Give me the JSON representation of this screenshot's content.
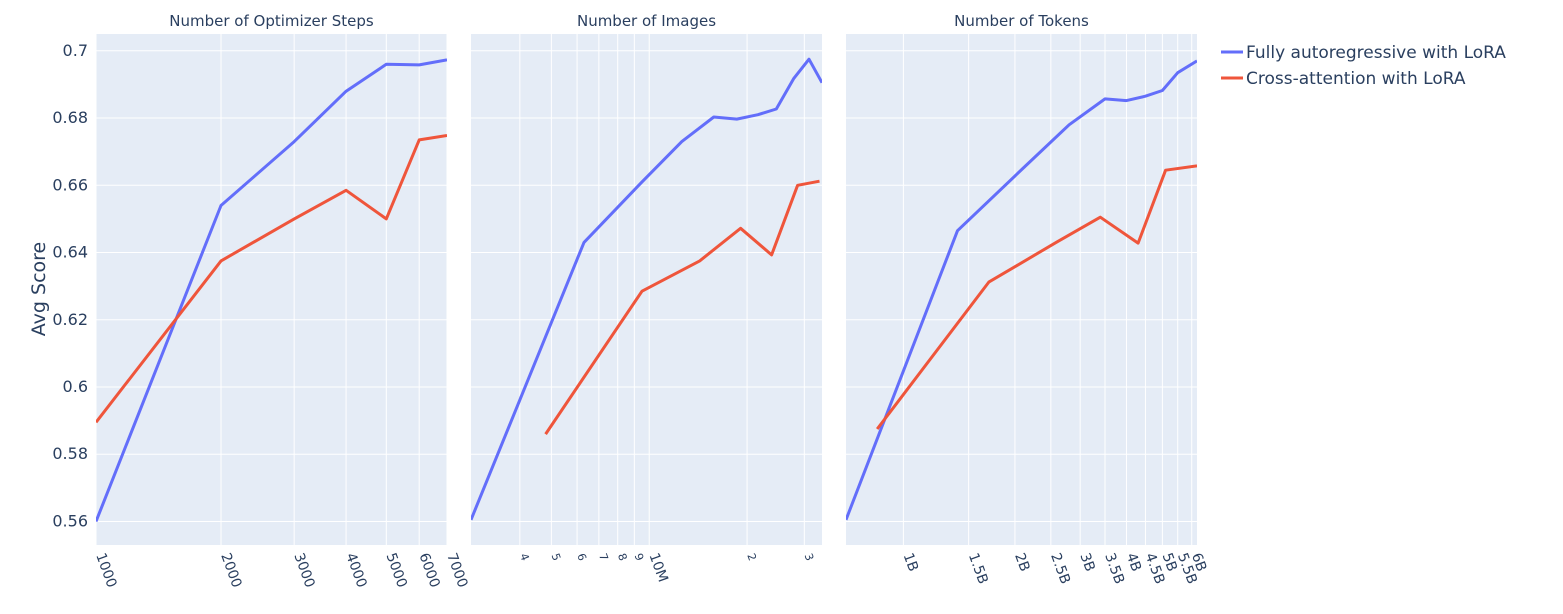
{
  "chart_data": {
    "type": "line",
    "ylabel": "Avg Score",
    "ylim": [
      0.553,
      0.705
    ],
    "yticks": [
      "0.56",
      "0.58",
      "0.6",
      "0.62",
      "0.64",
      "0.66",
      "0.68",
      "0.7"
    ],
    "legend": {
      "placement": "top-right",
      "entries": [
        "Fully autoregressive with LoRA",
        "Cross-attention with LoRA"
      ]
    },
    "colors": {
      "series1": "#636efa",
      "series2": "#ef553b",
      "plot_bg": "#e5ecf6",
      "grid": "#ffffff",
      "text": "#2a3f5f"
    },
    "panels": [
      {
        "title": "Number of Optimizer Steps",
        "xscale": "log",
        "xlim": [
          1000,
          7000
        ],
        "xticks": [
          {
            "value": 1000,
            "label": "1000"
          },
          {
            "value": 2000,
            "label": "2000"
          },
          {
            "value": 3000,
            "label": "3000"
          },
          {
            "value": 4000,
            "label": "4000"
          },
          {
            "value": 5000,
            "label": "5000"
          },
          {
            "value": 6000,
            "label": "6000"
          },
          {
            "value": 7000,
            "label": "7000"
          }
        ],
        "series": [
          {
            "name": "Fully autoregressive with LoRA",
            "x": [
              1000,
              2000,
              3000,
              4000,
              5000,
              6000,
              7000
            ],
            "y": [
              0.56,
              0.654,
              0.673,
              0.688,
              0.696,
              0.6958,
              0.6973
            ]
          },
          {
            "name": "Cross-attention with LoRA",
            "x": [
              1000,
              2000,
              3000,
              4000,
              5000,
              6000,
              7000
            ],
            "y": [
              0.5895,
              0.6375,
              0.65,
              0.6585,
              0.65,
              0.6735,
              0.6748
            ]
          }
        ]
      },
      {
        "title": "Number of Images",
        "xscale": "log",
        "xlim": [
          2830000,
          34000000
        ],
        "xticks": [
          {
            "value": 4000000,
            "label": "4",
            "minor": true
          },
          {
            "value": 5000000,
            "label": "5",
            "minor": true
          },
          {
            "value": 6000000,
            "label": "6",
            "minor": true
          },
          {
            "value": 7000000,
            "label": "7",
            "minor": true
          },
          {
            "value": 8000000,
            "label": "8",
            "minor": true
          },
          {
            "value": 9000000,
            "label": "9",
            "minor": true
          },
          {
            "value": 10000000,
            "label": "10M"
          },
          {
            "value": 20000000,
            "label": "2",
            "minor": true
          },
          {
            "value": 30000000,
            "label": "3",
            "minor": true
          }
        ],
        "series": [
          {
            "name": "Fully autoregressive with LoRA",
            "x": [
              2830000,
              6300000,
              9500000,
              12600000,
              15800000,
              18600000,
              21600000,
              24600000,
              27800000,
              31000000,
              34000000
            ],
            "y": [
              0.5605,
              0.643,
              0.661,
              0.673,
              0.6803,
              0.6797,
              0.681,
              0.6827,
              0.6917,
              0.6975,
              0.6905
            ]
          },
          {
            "name": "Cross-attention with LoRA",
            "x": [
              4800000,
              9500000,
              14300000,
              19100000,
              23800000,
              28600000,
              33400000
            ],
            "y": [
              0.586,
              0.6285,
              0.6375,
              0.6472,
              0.6393,
              0.66,
              0.6612
            ]
          }
        ]
      },
      {
        "title": "Number of Tokens",
        "xscale": "log",
        "xlim": [
          700000000,
          6200000000
        ],
        "xticks": [
          {
            "value": 1000000000,
            "label": "1B"
          },
          {
            "value": 1500000000,
            "label": "1.5B"
          },
          {
            "value": 2000000000,
            "label": "2B"
          },
          {
            "value": 2500000000,
            "label": "2.5B"
          },
          {
            "value": 3000000000,
            "label": "3B"
          },
          {
            "value": 3500000000,
            "label": "3.5B"
          },
          {
            "value": 4000000000,
            "label": "4B"
          },
          {
            "value": 4500000000,
            "label": "4.5B"
          },
          {
            "value": 5000000000,
            "label": "5B"
          },
          {
            "value": 5500000000,
            "label": "5.5B"
          },
          {
            "value": 6000000000,
            "label": "6B"
          }
        ],
        "series": [
          {
            "name": "Fully autoregressive with LoRA",
            "x": [
              700000000,
              1400000000,
              2100000000,
              2800000000,
              3500000000,
              4000000000,
              4500000000,
              5000000000,
              5500000000,
              6200000000
            ],
            "y": [
              0.5605,
              0.6465,
              0.665,
              0.678,
              0.6857,
              0.6852,
              0.6865,
              0.6882,
              0.6935,
              0.697
            ]
          },
          {
            "name": "Cross-attention with LoRA",
            "x": [
              850000000,
              1700000000,
              2600000000,
              3400000000,
              4300000000,
              5100000000,
              6200000000
            ],
            "y": [
              0.5875,
              0.6312,
              0.6432,
              0.6505,
              0.6428,
              0.6645,
              0.6658
            ]
          }
        ]
      }
    ]
  }
}
